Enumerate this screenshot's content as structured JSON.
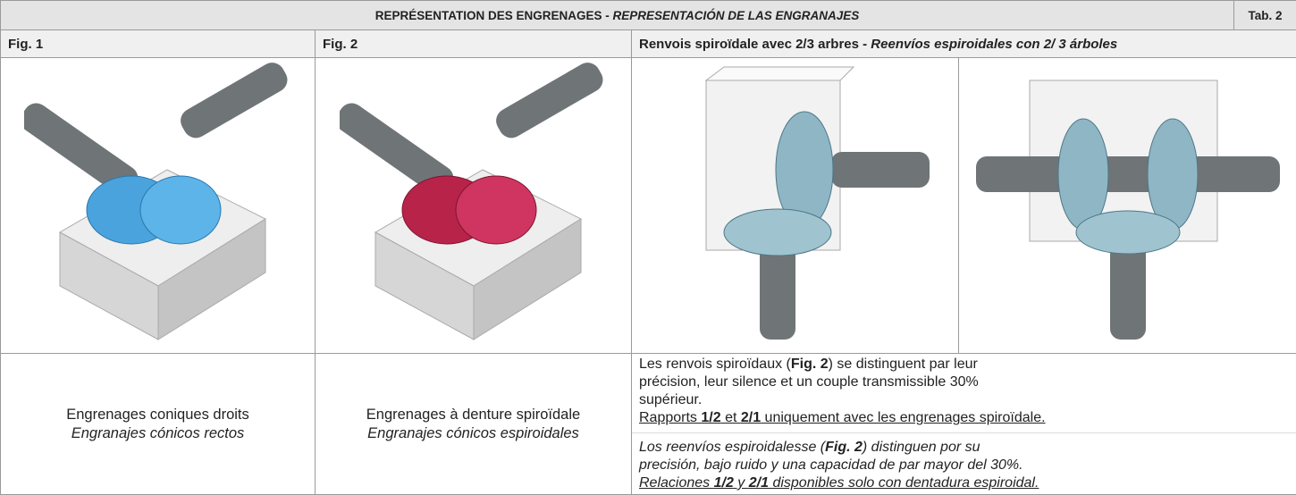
{
  "header": {
    "title_fr": "REPRÉSENTATION DES ENGRENAGES -",
    "title_es": "REPRESENTACIÓN DE LAS ENGRANAJES",
    "tab": "Tab. 2"
  },
  "columns": {
    "fig1": "Fig. 1",
    "fig2": "Fig. 2",
    "fr": "Renvois spiroïdale avec 2/3 arbres -",
    "es": "Reenvíos  espiroidales con 2/ 3 árboles"
  },
  "captions": [
    {
      "fr": "Engrenages coniques droits",
      "es": "Engranajes cónicos rectos"
    },
    {
      "fr": "Engrenages à denture spiroïdale",
      "es": "Engranajes cónicos espiroidales"
    }
  ],
  "description": {
    "fr": [
      "Les renvois spiroïdaux (",
      "Fig. 2",
      ") se distinguent par leur précision, leur silence et un couple transmissible 30% supérieur."
    ],
    "fr_note": [
      "Rapports ",
      "1/2",
      " et ",
      "2/1",
      " uniquement avec les engrenages spiroïdale."
    ],
    "es": [
      "Los reenvíos espiroidalesse  (",
      "Fig. 2",
      ") distinguen por su precisión, bajo ruido y una capacidad de par mayor del 30%."
    ],
    "es_note": [
      "Relaciones ",
      "1/2",
      " y ",
      "2/1",
      " disponibles solo con dentadura espiroidal."
    ]
  }
}
